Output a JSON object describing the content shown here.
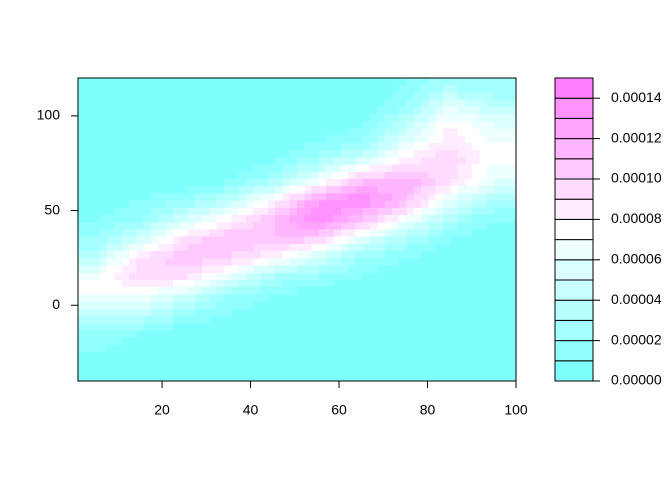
{
  "chart_data": {
    "type": "contour",
    "x": [
      5,
      15,
      25,
      35,
      45,
      55,
      65,
      75,
      85,
      95
    ],
    "y": [
      -35,
      -25,
      -15,
      -5,
      5,
      15,
      25,
      35,
      45,
      55,
      65,
      75,
      85,
      95,
      105,
      115
    ],
    "z": [
      [
        0,
        0,
        0,
        0,
        0,
        0,
        0,
        0,
        0,
        0
      ],
      [
        1e-05,
        0,
        0,
        0,
        0,
        0,
        0,
        0,
        0,
        0
      ],
      [
        2e-05,
        1e-05,
        0,
        0,
        0,
        0,
        0,
        0,
        0,
        0
      ],
      [
        4e-05,
        4e-05,
        2e-05,
        1e-05,
        0,
        0,
        0,
        0,
        0,
        0
      ],
      [
        7e-05,
        7e-05,
        5e-05,
        2e-05,
        1e-05,
        0,
        0,
        0,
        0,
        0
      ],
      [
        7e-05,
        0.0001,
        9e-05,
        6e-05,
        3e-05,
        2e-05,
        1e-05,
        0,
        0,
        0
      ],
      [
        4e-05,
        9e-05,
        0.00011,
        0.0001,
        8e-05,
        5e-05,
        2e-05,
        1e-05,
        0,
        0
      ],
      [
        2e-05,
        5e-05,
        9e-05,
        0.00011,
        0.00011,
        0.0001,
        6e-05,
        3e-05,
        1e-05,
        0
      ],
      [
        1e-05,
        2e-05,
        5e-05,
        8e-05,
        0.00011,
        0.00014,
        0.00011,
        7e-05,
        3e-05,
        1e-05
      ],
      [
        0,
        1e-05,
        2e-05,
        4e-05,
        8e-05,
        0.00013,
        0.00014,
        0.00011,
        6e-05,
        3e-05
      ],
      [
        0,
        0,
        0,
        1e-05,
        3e-05,
        7e-05,
        0.00011,
        0.00012,
        9e-05,
        6e-05
      ],
      [
        0,
        0,
        0,
        0,
        1e-05,
        3e-05,
        6e-05,
        9e-05,
        0.0001,
        7e-05
      ],
      [
        0,
        0,
        0,
        0,
        0,
        1e-05,
        2e-05,
        6e-05,
        9e-05,
        7e-05
      ],
      [
        0,
        0,
        0,
        0,
        0,
        0,
        1e-05,
        4e-05,
        8e-05,
        6e-05
      ],
      [
        0,
        0,
        0,
        0,
        0,
        0,
        0,
        2e-05,
        6e-05,
        4e-05
      ],
      [
        0,
        0,
        0,
        0,
        0,
        0,
        0,
        1e-05,
        3e-05,
        2e-05
      ]
    ],
    "xlim": [
      1,
      100
    ],
    "ylim": [
      -40,
      120
    ],
    "xticks": [
      20,
      40,
      60,
      80,
      100
    ],
    "yticks": [
      0,
      50,
      100
    ],
    "levels": [
      0,
      1e-05,
      2e-05,
      3e-05,
      4e-05,
      5e-05,
      6e-05,
      7e-05,
      8e-05,
      9e-05,
      0.0001,
      0.00011,
      0.00012,
      0.00013,
      0.00014,
      0.00015
    ],
    "colors": [
      "#80FFFF",
      "#92FFFF",
      "#A4FFFF",
      "#B6FFFF",
      "#C8FFFF",
      "#DBFFFF",
      "#EDFFFF",
      "#FFFFFF",
      "#FFEDFF",
      "#FFDBFF",
      "#FFC8FF",
      "#FFB6FF",
      "#FFA4FF",
      "#FF92FF",
      "#FF80FF"
    ],
    "colorbar_ticks": [
      {
        "value": 0,
        "label": "0.00000"
      },
      2e-05,
      4e-05,
      6e-05,
      8e-05,
      {
        "value": 0.0001,
        "label": "0.00010"
      },
      0.00012,
      0.00014
    ]
  }
}
